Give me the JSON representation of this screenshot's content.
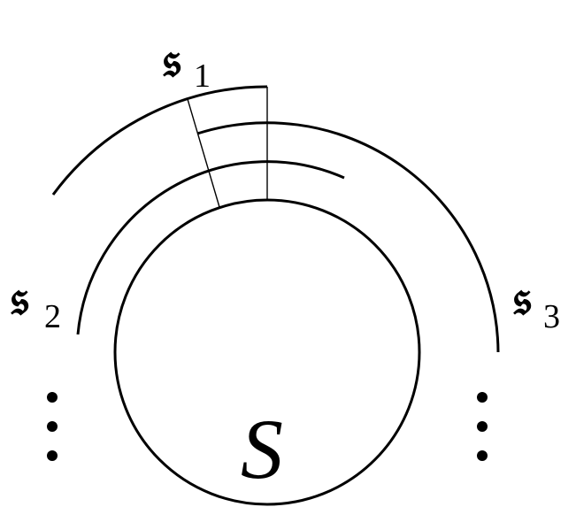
{
  "labels": {
    "base_set": "S",
    "sheet_1": {
      "symbol": "𝔰",
      "index": "1"
    },
    "sheet_2": {
      "symbol": "𝔰",
      "index": "2"
    },
    "sheet_3": {
      "symbol": "𝔰",
      "index": "3"
    }
  }
}
